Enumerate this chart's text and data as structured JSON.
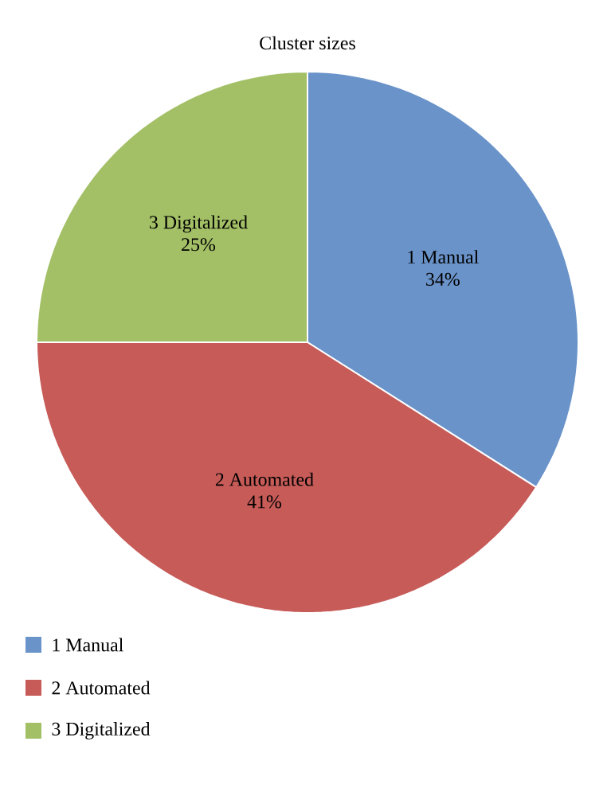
{
  "chart_data": {
    "type": "pie",
    "title": "Cluster sizes",
    "categories": [
      "1 Manual",
      "2 Automated",
      "3 Digitalized"
    ],
    "values": [
      34,
      41,
      25
    ],
    "value_labels": [
      "34%",
      "41%",
      "25%"
    ],
    "colors": [
      "#6a93c9",
      "#c65b58",
      "#a3c067"
    ],
    "legend": "bottom left"
  }
}
